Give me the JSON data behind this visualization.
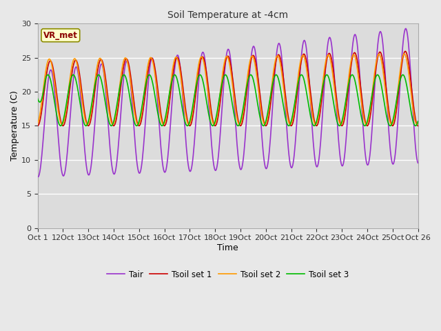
{
  "title": "Soil Temperature at -4cm",
  "xlabel": "Time",
  "ylabel": "Temperature (C)",
  "ylim": [
    0,
    30
  ],
  "yticks": [
    0,
    5,
    10,
    15,
    20,
    25,
    30
  ],
  "fig_bg_color": "#e8e8e8",
  "plot_bg_color": "#dcdcdc",
  "grid_color": "#ffffff",
  "annotation_text": "VR_met",
  "annotation_color": "#8B0000",
  "annotation_bg": "#ffffcc",
  "annotation_border": "#8B8B00",
  "line_colors": {
    "Tair": "#9933cc",
    "Tsoil_set1": "#cc0000",
    "Tsoil_set2": "#ff9900",
    "Tsoil_set3": "#00bb00"
  },
  "legend_labels": [
    "Tair",
    "Tsoil set 1",
    "Tsoil set 2",
    "Tsoil set 3"
  ],
  "n_days": 15,
  "pts_per_day": 48,
  "start_day": 11,
  "end_day": 26
}
